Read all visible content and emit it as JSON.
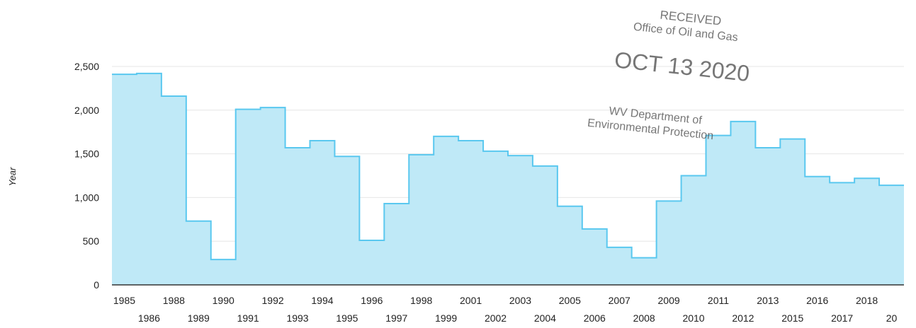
{
  "chart_data": {
    "type": "area",
    "step": true,
    "categories": [
      "1985",
      "1986",
      "1988",
      "1989",
      "1990",
      "1991",
      "1992",
      "1993",
      "1994",
      "1995",
      "1996",
      "1997",
      "1998",
      "1999",
      "2001",
      "2002",
      "2003",
      "2004",
      "2005",
      "2006",
      "2007",
      "2008",
      "2009",
      "2010",
      "2011",
      "2012",
      "2013",
      "2015",
      "2016",
      "2017",
      "2018",
      "20"
    ],
    "values": [
      2410,
      2420,
      2160,
      730,
      290,
      2010,
      2030,
      1570,
      1650,
      1470,
      510,
      930,
      1490,
      1700,
      1650,
      1530,
      1480,
      1360,
      900,
      640,
      430,
      310,
      960,
      1250,
      1710,
      1870,
      1570,
      1670,
      1240,
      1170,
      1220,
      1140
    ],
    "ylabel": "Year",
    "ylim": [
      0,
      2500
    ],
    "yticks": [
      0,
      500,
      1000,
      1500,
      2000,
      2500
    ],
    "ytick_labels": [
      "0",
      "500",
      "1,000",
      "1,500",
      "2,000",
      "2,500"
    ],
    "grid": true,
    "fill_color": "#bfe9f7",
    "line_color": "#5ac8ef"
  },
  "stamp": {
    "line1": "RECEIVED",
    "line2": "Office of Oil and Gas",
    "line3": "OCT 13 2020",
    "line4": "WV Department of",
    "line5": "Environmental Protection"
  }
}
